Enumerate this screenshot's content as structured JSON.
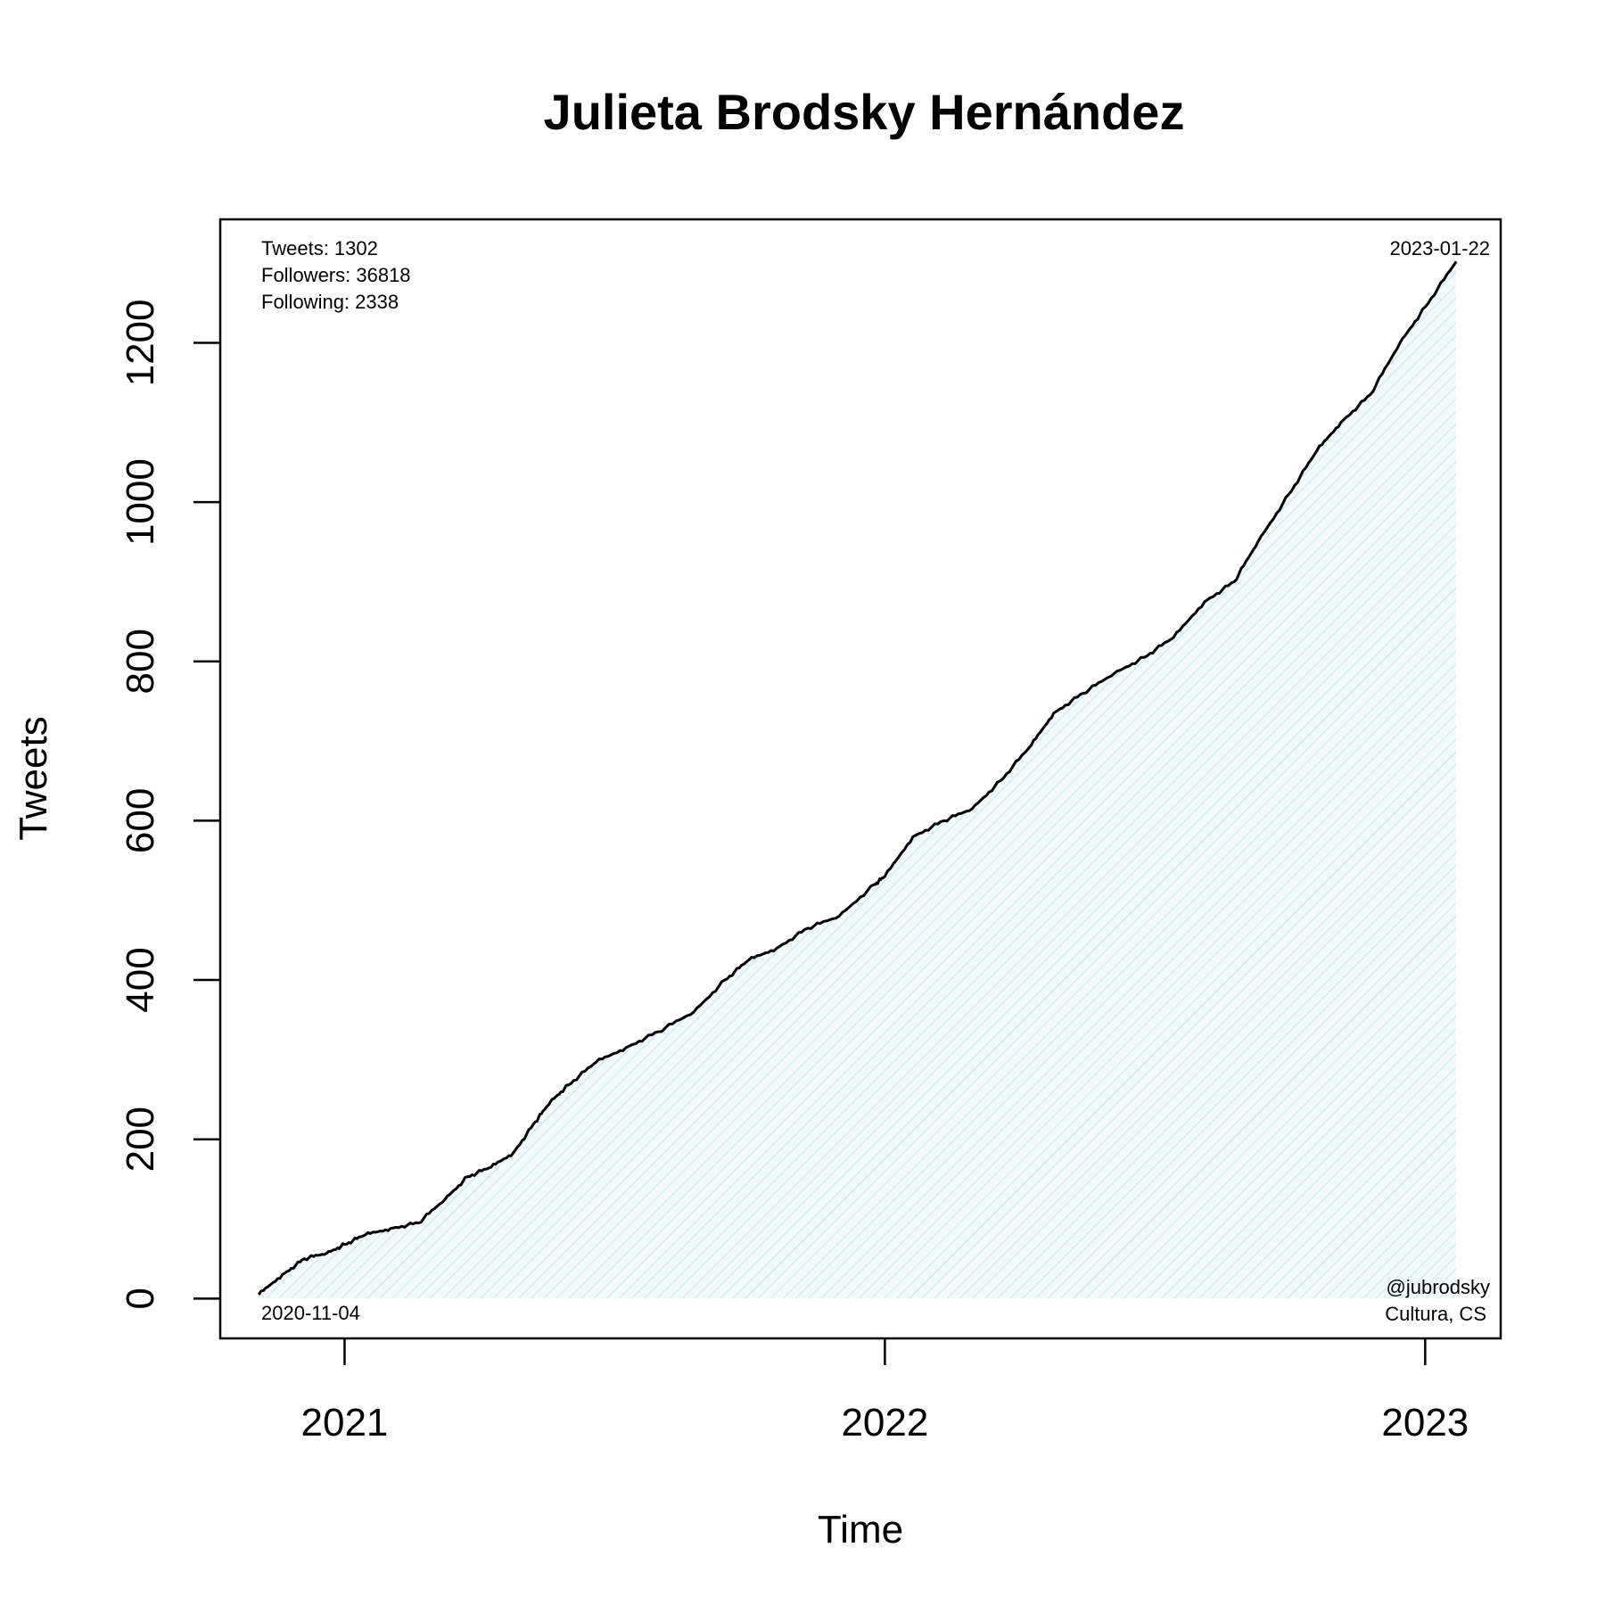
{
  "chart_data": {
    "type": "area",
    "title": "Julieta Brodsky Hernández",
    "xlabel": "Time",
    "ylabel": "Tweets",
    "x_ticks": [
      "2021",
      "2022",
      "2023"
    ],
    "y_ticks": [
      "0",
      "200",
      "400",
      "600",
      "800",
      "1000",
      "1200"
    ],
    "ylim": [
      -50,
      1355
    ],
    "xlim": [
      "2020-10-09",
      "2023-02-21"
    ],
    "grid": false,
    "fill_color": "#e3f3f8",
    "line_color": "#000000",
    "series": [
      {
        "x": [
          "2020-11-04",
          "2020-11-20",
          "2020-12-05",
          "2020-12-20",
          "2021-01-01",
          "2021-01-15",
          "2021-02-01",
          "2021-02-20",
          "2021-03-10",
          "2021-03-25",
          "2021-04-10",
          "2021-04-25",
          "2021-05-10",
          "2021-05-20",
          "2021-06-01",
          "2021-06-20",
          "2021-07-10",
          "2021-08-01",
          "2021-08-25",
          "2021-09-15",
          "2021-10-01",
          "2021-10-20",
          "2021-11-10",
          "2021-12-01",
          "2021-12-25",
          "2022-01-01",
          "2022-01-20",
          "2022-02-10",
          "2022-03-01",
          "2022-03-20",
          "2022-04-10",
          "2022-04-25",
          "2022-05-15",
          "2022-06-05",
          "2022-06-25",
          "2022-07-15",
          "2022-08-05",
          "2022-08-25",
          "2022-09-10",
          "2022-10-01",
          "2022-10-20",
          "2022-11-05",
          "2022-11-25",
          "2022-12-15",
          "2023-01-01",
          "2023-01-22"
        ],
        "y": [
          5,
          30,
          50,
          57,
          68,
          80,
          88,
          95,
          125,
          153,
          165,
          183,
          222,
          247,
          268,
          297,
          315,
          335,
          360,
          400,
          425,
          440,
          465,
          480,
          520,
          530,
          580,
          600,
          615,
          650,
          695,
          735,
          760,
          785,
          805,
          830,
          875,
          900,
          950,
          1010,
          1065,
          1100,
          1135,
          1200,
          1245,
          1302
        ]
      }
    ],
    "annotations": {
      "stats": [
        "Tweets: 1302",
        "Followers: 36818",
        "Following: 2338"
      ],
      "end_date": "2023-01-22",
      "start_date": "2020-11-04",
      "handle": "@jubrodsky",
      "affiliation": "Cultura, CS"
    }
  }
}
